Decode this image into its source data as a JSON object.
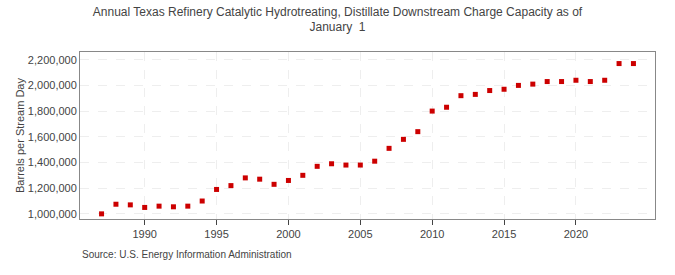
{
  "chart_data": {
    "type": "scatter",
    "title": "Annual Texas Refinery Catalytic Hydrotreating, Distillate Downstream Charge Capacity as of\nJanuary  1",
    "ylabel": "Barrels per Stream Day",
    "annotations": [
      "Source: U.S. Energy Information Administration"
    ],
    "x": [
      1987,
      1988,
      1989,
      1990,
      1991,
      1992,
      1993,
      1994,
      1995,
      1996,
      1997,
      1998,
      1999,
      2000,
      2001,
      2002,
      2003,
      2004,
      2005,
      2006,
      2007,
      2008,
      2009,
      2010,
      2011,
      2012,
      2013,
      2014,
      2015,
      2016,
      2017,
      2018,
      2019,
      2020,
      2021,
      2022,
      2023,
      2024
    ],
    "values": [
      1000000,
      1075000,
      1070000,
      1050000,
      1060000,
      1055000,
      1060000,
      1100000,
      1190000,
      1220000,
      1280000,
      1270000,
      1230000,
      1260000,
      1300000,
      1370000,
      1390000,
      1380000,
      1380000,
      1410000,
      1510000,
      1580000,
      1640000,
      1800000,
      1830000,
      1920000,
      1930000,
      1960000,
      1970000,
      2000000,
      2010000,
      2030000,
      2030000,
      2040000,
      2030000,
      2040000,
      2170000,
      2170000
    ],
    "color": "#cc0000",
    "marker": "square",
    "xlim": [
      1985.5,
      2025.5
    ],
    "xticks": [
      1990,
      1995,
      2000,
      2005,
      2010,
      2015,
      2020
    ],
    "ylim": [
      960000,
      2260000
    ],
    "yticks": [
      {
        "value": 1000000,
        "label": "1,000,000"
      },
      {
        "value": 1200000,
        "label": "1,200,000"
      },
      {
        "value": 1400000,
        "label": "1,400,000"
      },
      {
        "value": 1600000,
        "label": "1,600,000"
      },
      {
        "value": 1800000,
        "label": "1,800,000"
      },
      {
        "value": 2000000,
        "label": "2,000,000"
      },
      {
        "value": 2200000,
        "label": "2,200,000"
      }
    ],
    "grid": true
  }
}
